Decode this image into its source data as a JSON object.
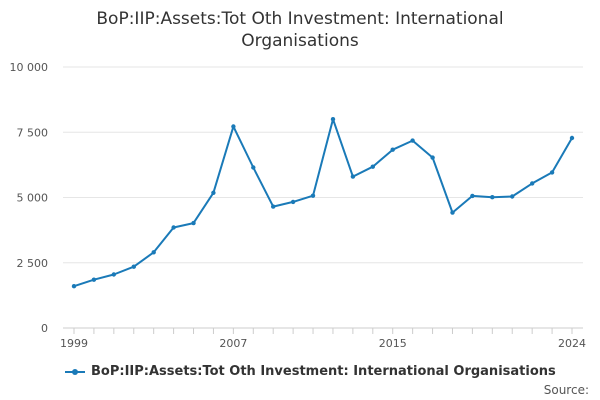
{
  "chart_data": {
    "type": "line",
    "title": "BoP:IIP:Assets:Tot Oth Investment: International Organisations",
    "xlabel": "",
    "ylabel": "",
    "x": [
      1999,
      2000,
      2001,
      2002,
      2003,
      2004,
      2005,
      2006,
      2007,
      2008,
      2009,
      2010,
      2011,
      2012,
      2013,
      2014,
      2015,
      2016,
      2017,
      2018,
      2019,
      2020,
      2021,
      2022,
      2023,
      2024
    ],
    "series": [
      {
        "name": "BoP:IIP:Assets:Tot Oth Investment: International Organisations",
        "values": [
          1600,
          1850,
          2050,
          2350,
          2900,
          3850,
          4020,
          5180,
          7720,
          6150,
          4650,
          4830,
          5070,
          8000,
          5800,
          6180,
          6830,
          7180,
          6530,
          4420,
          5060,
          5010,
          5040,
          5540,
          5960,
          7280
        ]
      }
    ],
    "xlim": [
      1999,
      2024
    ],
    "ylim": [
      0,
      10000
    ],
    "x_ticks": [
      "1999",
      "2007",
      "2015",
      "2024"
    ],
    "y_ticks": [
      "0",
      "2 500",
      "5 000",
      "7 500",
      "10 000"
    ],
    "grid": "horizontal",
    "legend_position": "bottom-left",
    "colors": {
      "series": "#1a7ab8",
      "grid": "#e6e6e6",
      "axis": "#cccccc"
    }
  },
  "legend": {
    "label": "BoP:IIP:Assets:Tot Oth Investment: International Organisations"
  },
  "source": {
    "label": "Source:"
  }
}
